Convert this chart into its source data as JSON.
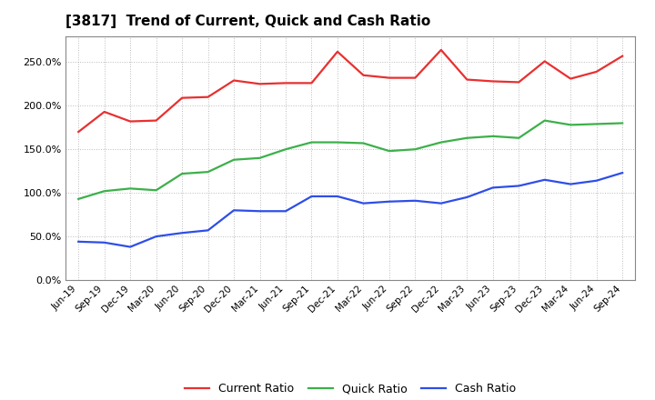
{
  "title": "[3817]  Trend of Current, Quick and Cash Ratio",
  "labels": [
    "Jun-19",
    "Sep-19",
    "Dec-19",
    "Mar-20",
    "Jun-20",
    "Sep-20",
    "Dec-20",
    "Mar-21",
    "Jun-21",
    "Sep-21",
    "Dec-21",
    "Mar-22",
    "Jun-22",
    "Sep-22",
    "Dec-22",
    "Mar-23",
    "Jun-23",
    "Sep-23",
    "Dec-23",
    "Mar-24",
    "Jun-24",
    "Sep-24"
  ],
  "current_ratio": [
    1.7,
    1.93,
    1.82,
    1.83,
    2.09,
    2.1,
    2.29,
    2.25,
    2.26,
    2.26,
    2.62,
    2.35,
    2.32,
    2.32,
    2.64,
    2.3,
    2.28,
    2.27,
    2.51,
    2.31,
    2.39,
    2.57
  ],
  "quick_ratio": [
    0.93,
    1.02,
    1.05,
    1.03,
    1.22,
    1.24,
    1.38,
    1.4,
    1.5,
    1.58,
    1.58,
    1.57,
    1.48,
    1.5,
    1.58,
    1.63,
    1.65,
    1.63,
    1.83,
    1.78,
    1.79,
    1.8
  ],
  "cash_ratio": [
    0.44,
    0.43,
    0.38,
    0.5,
    0.54,
    0.57,
    0.8,
    0.79,
    0.79,
    0.96,
    0.96,
    0.88,
    0.9,
    0.91,
    0.88,
    0.95,
    1.06,
    1.08,
    1.15,
    1.1,
    1.14,
    1.23
  ],
  "current_color": "#e83030",
  "quick_color": "#3cb04a",
  "cash_color": "#2e4ee8",
  "ylim": [
    0.0,
    2.8
  ],
  "yticks": [
    0.0,
    0.5,
    1.0,
    1.5,
    2.0,
    2.5
  ],
  "ytick_labels": [
    "0.0%",
    "50.0%",
    "100.0%",
    "150.0%",
    "200.0%",
    "250.0%"
  ],
  "background_color": "#ffffff",
  "plot_bg_color": "#ffffff",
  "grid_color": "#bbbbbb",
  "legend_labels": [
    "Current Ratio",
    "Quick Ratio",
    "Cash Ratio"
  ]
}
